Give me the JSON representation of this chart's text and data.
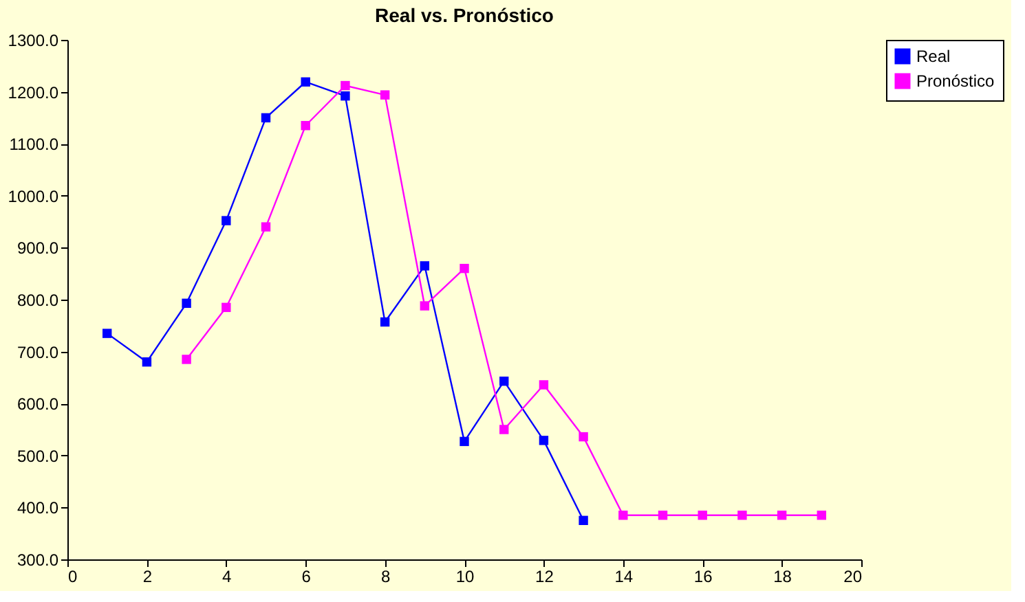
{
  "chart_data": {
    "type": "line",
    "title": "Real vs. Pronóstico",
    "series": [
      {
        "name": "Real",
        "color": "#0000ff",
        "x": [
          1,
          2,
          3,
          4,
          5,
          6,
          7,
          8,
          9,
          10,
          11,
          12,
          13
        ],
        "values": [
          735,
          680,
          793,
          952,
          1150,
          1219,
          1192,
          757,
          865,
          527,
          643,
          529,
          375
        ]
      },
      {
        "name": "Pronóstico",
        "color": "#ff00ff",
        "x": [
          3,
          4,
          5,
          6,
          7,
          8,
          9,
          10,
          11,
          12,
          13,
          14,
          15,
          16,
          17,
          18,
          19
        ],
        "values": [
          685,
          785,
          940,
          1135,
          1212,
          1194,
          788,
          860,
          550,
          636,
          536,
          385,
          385,
          385,
          385,
          385,
          385
        ]
      }
    ],
    "xlim": [
      0,
      20
    ],
    "xticks": [
      0,
      2,
      4,
      6,
      8,
      10,
      12,
      14,
      16,
      18,
      20
    ],
    "ylim": [
      300,
      1300
    ],
    "yticks": [
      {
        "value": 300,
        "label": "300.0"
      },
      {
        "value": 400,
        "label": "400.0"
      },
      {
        "value": 500,
        "label": "500.0"
      },
      {
        "value": 600,
        "label": "600.0"
      },
      {
        "value": 700,
        "label": "700.0"
      },
      {
        "value": 800,
        "label": "800.0"
      },
      {
        "value": 900,
        "label": "900.0"
      },
      {
        "value": 1000,
        "label": "1000.0"
      },
      {
        "value": 1100,
        "label": "1100.0"
      },
      {
        "value": 1200,
        "label": "1200.0"
      },
      {
        "value": 1300,
        "label": "1300.0"
      }
    ],
    "grid": false,
    "legend": "right",
    "marker": "square",
    "line_style": "solid"
  }
}
